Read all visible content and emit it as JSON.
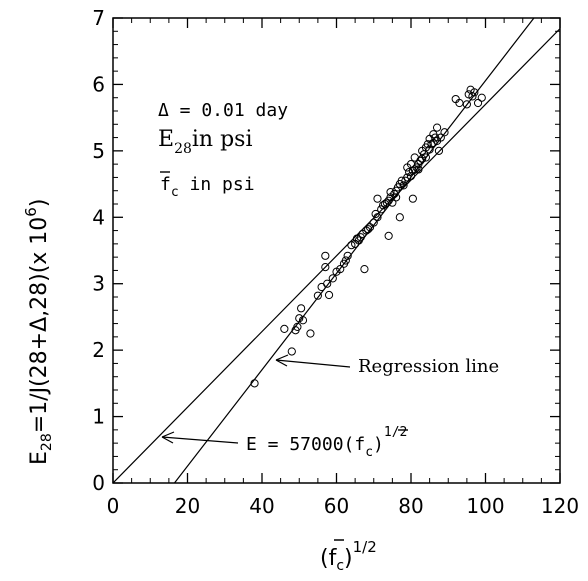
{
  "chart_data": {
    "type": "scatter",
    "xlabel": "(f̄c)1/2",
    "ylabel": "E28=1/J(28+Δ,28)(x 106)",
    "xlim": [
      0,
      120
    ],
    "ylim": [
      0,
      7
    ],
    "xticks": [
      0,
      20,
      40,
      60,
      80,
      100,
      120
    ],
    "yticks": [
      0,
      1,
      2,
      3,
      4,
      5,
      6,
      7
    ],
    "grid": false,
    "annotations": {
      "delta_line": "Δ = 0.01 day",
      "e28_main": "E",
      "e28_sub": "28",
      "e28_rest": "in psi",
      "fc_main": "f",
      "fc_sub": "c",
      "fc_rest": " in psi",
      "regression_label": "Regression line",
      "formula_main": "E  =  57000(f",
      "formula_sub": "c",
      "formula_close": ")",
      "formula_sup": "1/2"
    },
    "axis_text": {
      "x_open": "(f",
      "x_sub": "c",
      "x_close": ")",
      "x_sup": "1/2",
      "y_main": "E",
      "y_sub": "28",
      "y_mid": "=1/J(28+Δ,28)(x 10",
      "y_sup": "6",
      "y_close": ")"
    },
    "lines": [
      {
        "name": "E = 57000(fc)1/2",
        "points": [
          [
            0,
            0
          ],
          [
            120,
            6.84
          ]
        ]
      },
      {
        "name": "Regression line",
        "points": [
          [
            16.5,
            0
          ],
          [
            113,
            7.0
          ]
        ]
      }
    ],
    "points": [
      [
        38,
        1.5
      ],
      [
        46,
        2.32
      ],
      [
        48,
        1.98
      ],
      [
        49,
        2.3
      ],
      [
        49.5,
        2.35
      ],
      [
        50,
        2.48
      ],
      [
        50.5,
        2.63
      ],
      [
        51,
        2.45
      ],
      [
        53,
        2.25
      ],
      [
        55,
        2.82
      ],
      [
        56,
        2.95
      ],
      [
        57,
        3.25
      ],
      [
        57,
        3.42
      ],
      [
        57.5,
        3.0
      ],
      [
        58,
        2.83
      ],
      [
        59,
        3.08
      ],
      [
        60,
        3.18
      ],
      [
        61,
        3.22
      ],
      [
        62,
        3.3
      ],
      [
        62.5,
        3.35
      ],
      [
        63,
        3.42
      ],
      [
        64,
        3.58
      ],
      [
        65,
        3.6
      ],
      [
        65.5,
        3.68
      ],
      [
        66,
        3.65
      ],
      [
        66.5,
        3.7
      ],
      [
        67,
        3.75
      ],
      [
        67.5,
        3.22
      ],
      [
        68,
        3.8
      ],
      [
        68.5,
        3.82
      ],
      [
        69,
        3.85
      ],
      [
        70,
        3.92
      ],
      [
        70.5,
        4.05
      ],
      [
        71,
        4.0
      ],
      [
        71,
        4.28
      ],
      [
        72,
        4.12
      ],
      [
        72.5,
        4.18
      ],
      [
        73,
        4.2
      ],
      [
        73.5,
        4.22
      ],
      [
        74,
        4.25
      ],
      [
        74,
        3.72
      ],
      [
        74.5,
        4.3
      ],
      [
        74.5,
        4.38
      ],
      [
        75,
        4.22
      ],
      [
        75.5,
        4.35
      ],
      [
        76,
        4.4
      ],
      [
        76,
        4.3
      ],
      [
        76.5,
        4.45
      ],
      [
        77,
        4.5
      ],
      [
        77,
        4.0
      ],
      [
        77.5,
        4.55
      ],
      [
        78,
        4.48
      ],
      [
        78.5,
        4.55
      ],
      [
        79,
        4.6
      ],
      [
        79,
        4.75
      ],
      [
        79.5,
        4.68
      ],
      [
        80,
        4.62
      ],
      [
        80,
        4.8
      ],
      [
        80.5,
        4.7
      ],
      [
        80.5,
        4.28
      ],
      [
        81,
        4.72
      ],
      [
        81,
        4.9
      ],
      [
        81.5,
        4.75
      ],
      [
        82,
        4.72
      ],
      [
        82,
        4.8
      ],
      [
        82.5,
        4.85
      ],
      [
        83,
        4.88
      ],
      [
        83,
        5.0
      ],
      [
        83.5,
        4.95
      ],
      [
        84,
        5.05
      ],
      [
        84,
        4.9
      ],
      [
        84.5,
        5.1
      ],
      [
        85,
        5.02
      ],
      [
        85,
        5.18
      ],
      [
        85.5,
        5.1
      ],
      [
        86,
        5.12
      ],
      [
        86,
        5.25
      ],
      [
        86.5,
        5.2
      ],
      [
        87,
        5.35
      ],
      [
        87,
        5.15
      ],
      [
        87.5,
        5.0
      ],
      [
        88,
        5.2
      ],
      [
        89,
        5.28
      ],
      [
        92,
        5.78
      ],
      [
        93,
        5.72
      ],
      [
        95,
        5.7
      ],
      [
        95.5,
        5.85
      ],
      [
        96,
        5.92
      ],
      [
        96.5,
        5.82
      ],
      [
        97,
        5.88
      ],
      [
        98,
        5.72
      ],
      [
        99,
        5.8
      ]
    ]
  }
}
